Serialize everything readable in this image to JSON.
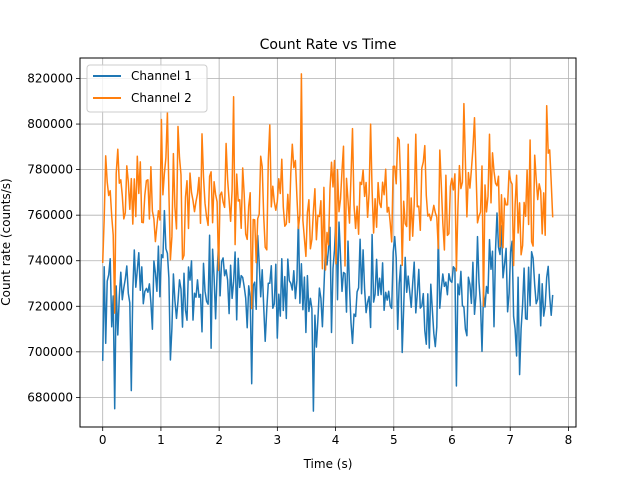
{
  "chart_data": {
    "type": "line",
    "title": "Count Rate vs Time",
    "xlabel": "Time (s)",
    "ylabel": "Count rate (counts/s)",
    "xlim": [
      -0.39,
      8.13
    ],
    "ylim": [
      667000,
      829000
    ],
    "x_ticks": [
      0,
      1,
      2,
      3,
      4,
      5,
      6,
      7,
      8
    ],
    "x_tick_labels": [
      "0",
      "1",
      "2",
      "3",
      "4",
      "5",
      "6",
      "7",
      "8"
    ],
    "y_ticks": [
      680000,
      700000,
      720000,
      740000,
      760000,
      780000,
      800000,
      820000
    ],
    "y_tick_labels": [
      "680000",
      "700000",
      "720000",
      "740000",
      "760000",
      "780000",
      "800000",
      "820000"
    ],
    "grid": true,
    "legend": "top-left",
    "x_range": [
      0,
      7.73
    ],
    "n_points": 300,
    "series": [
      {
        "name": "Channel 1",
        "color": "#1f77b4",
        "mean": 728000,
        "amplitude": 22000,
        "seed": 7,
        "samples": [
          {
            "x": 0.0,
            "y": 696000
          },
          {
            "x": 0.08,
            "y": 731000
          },
          {
            "x": 0.16,
            "y": 711000
          },
          {
            "x": 0.2,
            "y": 675000
          },
          {
            "x": 0.5,
            "y": 683000
          },
          {
            "x": 1.05,
            "y": 762000
          },
          {
            "x": 2.32,
            "y": 741000
          },
          {
            "x": 2.55,
            "y": 686000
          },
          {
            "x": 3.37,
            "y": 759000
          },
          {
            "x": 3.63,
            "y": 674000
          },
          {
            "x": 4.0,
            "y": 760000
          },
          {
            "x": 5.12,
            "y": 738000
          },
          {
            "x": 6.07,
            "y": 685000
          },
          {
            "x": 7.17,
            "y": 690000
          },
          {
            "x": 7.73,
            "y": 725000
          }
        ]
      },
      {
        "name": "Channel 2",
        "color": "#ff7f0e",
        "mean": 768000,
        "amplitude": 26000,
        "seed": 19,
        "samples": [
          {
            "x": 0.0,
            "y": 739000
          },
          {
            "x": 0.05,
            "y": 786000
          },
          {
            "x": 0.2,
            "y": 717000
          },
          {
            "x": 1.0,
            "y": 802000
          },
          {
            "x": 1.1,
            "y": 805000
          },
          {
            "x": 2.25,
            "y": 812000
          },
          {
            "x": 2.55,
            "y": 719000
          },
          {
            "x": 3.4,
            "y": 822000
          },
          {
            "x": 4.3,
            "y": 798000
          },
          {
            "x": 5.1,
            "y": 793000
          },
          {
            "x": 6.2,
            "y": 809000
          },
          {
            "x": 6.55,
            "y": 720000
          },
          {
            "x": 7.35,
            "y": 793000
          },
          {
            "x": 7.62,
            "y": 808000
          },
          {
            "x": 7.73,
            "y": 759000
          }
        ]
      }
    ]
  }
}
